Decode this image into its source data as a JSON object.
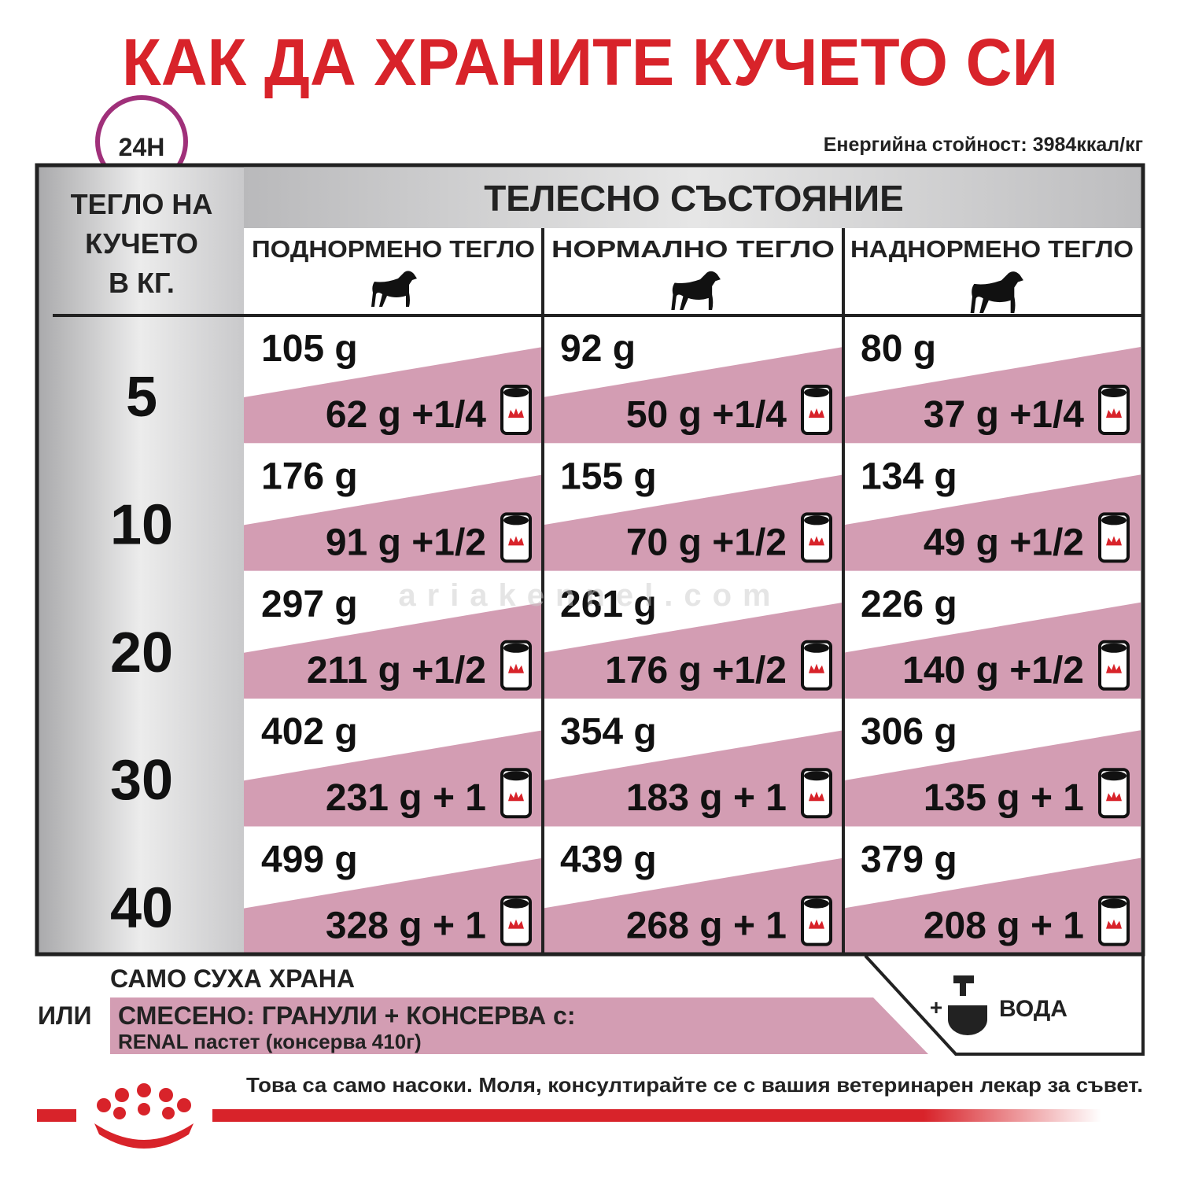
{
  "header": {
    "title": "КАК ДА ХРАНИТЕ КУЧЕТО СИ",
    "badge": "24H",
    "energy": "Енергийна стойност: 3984ккал/кг"
  },
  "table": {
    "weight_header": [
      "ТЕГЛО НА",
      "КУЧЕТО",
      "В КГ."
    ],
    "condition_header": "ТЕЛЕСНО СЪСТОЯНИЕ",
    "columns": [
      "ПОДНОРМЕНО ТЕГЛО",
      "НОРМАЛНО ТЕГЛО",
      "НАДНОРМЕНО ТЕГЛО"
    ],
    "rows": [
      {
        "weight": "5",
        "cells": [
          {
            "dry": "105 g",
            "mixed": "62 g +1/4"
          },
          {
            "dry": "92 g",
            "mixed": "50 g +1/4"
          },
          {
            "dry": "80 g",
            "mixed": "37 g +1/4"
          }
        ]
      },
      {
        "weight": "10",
        "cells": [
          {
            "dry": "176 g",
            "mixed": "91 g +1/2"
          },
          {
            "dry": "155 g",
            "mixed": "70 g +1/2"
          },
          {
            "dry": "134 g",
            "mixed": "49 g +1/2"
          }
        ]
      },
      {
        "weight": "20",
        "cells": [
          {
            "dry": "297 g",
            "mixed": "211 g +1/2"
          },
          {
            "dry": "261 g",
            "mixed": "176 g +1/2"
          },
          {
            "dry": "226 g",
            "mixed": "140 g +1/2"
          }
        ]
      },
      {
        "weight": "30",
        "cells": [
          {
            "dry": "402 g",
            "mixed": "231 g + 1"
          },
          {
            "dry": "354 g",
            "mixed": "183 g + 1"
          },
          {
            "dry": "306 g",
            "mixed": "135 g + 1"
          }
        ]
      },
      {
        "weight": "40",
        "cells": [
          {
            "dry": "499 g",
            "mixed": "328 g + 1"
          },
          {
            "dry": "439 g",
            "mixed": "268 g + 1"
          },
          {
            "dry": "379 g",
            "mixed": "208 g + 1"
          }
        ]
      }
    ]
  },
  "legend": {
    "dry_only": "САМО СУХА ХРАНА",
    "or": "ИЛИ",
    "mixed": "СМЕСЕНО: ГРАНУЛИ + КОНСЕРВА с:",
    "mixed_note": "RENAL пастет (консерва 410г)",
    "water_plus": "+",
    "water": "ВОДА"
  },
  "watermark": "ariakennel.com",
  "disclaimer": "Това са само насоки. Моля, консултирайте се с вашия ветеринарен лекар за съвет."
}
